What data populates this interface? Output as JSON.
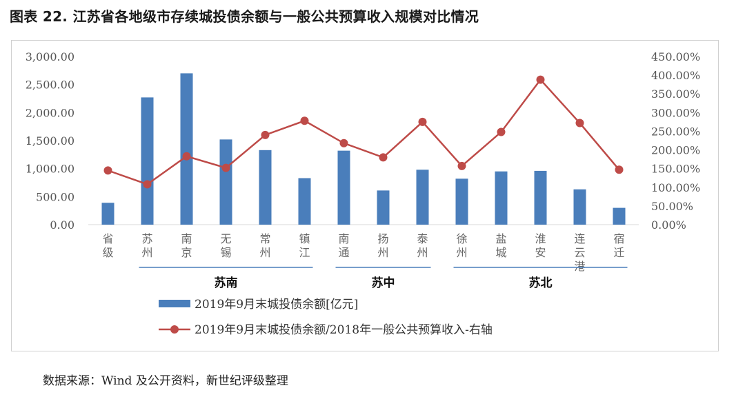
{
  "figure": {
    "title": "图表 22. 江苏省各地级市存续城投债余额与一般公共预算收入规模对比情况",
    "source": "数据来源：Wind 及公开资料，新世纪评级整理"
  },
  "chart_data": {
    "type": "bar+line",
    "categories": [
      "省级",
      "苏州",
      "南京",
      "无锡",
      "常州",
      "镇江",
      "南通",
      "扬州",
      "泰州",
      "徐州",
      "盐城",
      "淮安",
      "连云港",
      "宿迁"
    ],
    "series": [
      {
        "name": "2019年9月末城投债余额[亿元]",
        "type": "bar",
        "axis": "left",
        "values": [
          390,
          2270,
          2700,
          1520,
          1330,
          830,
          1320,
          610,
          980,
          820,
          950,
          960,
          630,
          300
        ]
      },
      {
        "name": "2019年9月末城投债余额/2018年一般公共预算收入-右轴",
        "type": "line",
        "axis": "right",
        "values": [
          145,
          108,
          183,
          152,
          240,
          278,
          218,
          180,
          275,
          157,
          248,
          388,
          272,
          147
        ]
      }
    ],
    "left_axis": {
      "ylim": [
        0,
        3000
      ],
      "ticks": [
        "0.00",
        "500.00",
        "1,000.00",
        "1,500.00",
        "2,000.00",
        "2,500.00",
        "3,000.00"
      ]
    },
    "right_axis": {
      "ylim": [
        0,
        450
      ],
      "ticks": [
        "0.00%",
        "50.00%",
        "100.00%",
        "150.00%",
        "200.00%",
        "250.00%",
        "300.00%",
        "350.00%",
        "400.00%",
        "450.00%"
      ]
    },
    "groups": [
      {
        "label": "苏南",
        "from": 1,
        "to": 5
      },
      {
        "label": "苏中",
        "from": 6,
        "to": 8
      },
      {
        "label": "苏北",
        "from": 9,
        "to": 13
      }
    ],
    "colors": {
      "bar": "#4a7ebb",
      "line": "#be4b48",
      "group_line": "#4a7ebb"
    },
    "grid": false,
    "legend_position": "bottom"
  }
}
